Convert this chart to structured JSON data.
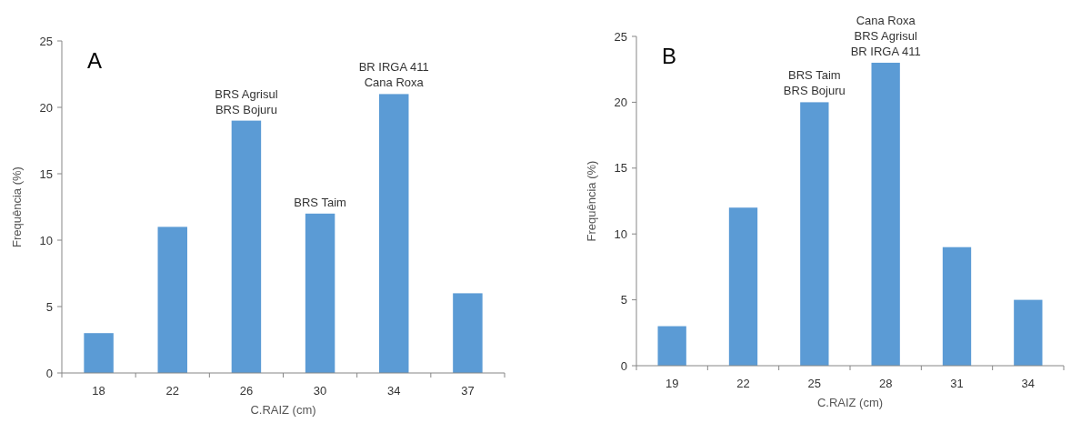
{
  "chart_data": [
    {
      "type": "bar",
      "title": "A",
      "xlabel": "C.RAIZ (cm)",
      "ylabel": "Frequência (%)",
      "categories": [
        "18",
        "22",
        "26",
        "30",
        "34",
        "37"
      ],
      "values": [
        3,
        11,
        19,
        12,
        21,
        6
      ],
      "color": "#5b9bd5",
      "ylim": [
        0,
        25
      ],
      "yticks": [
        0,
        5,
        10,
        15,
        20,
        25
      ],
      "grid": false,
      "annotations": [
        {
          "text": "BRS Agrisul\nBRS Bojuru",
          "x": "26",
          "y": 19
        },
        {
          "text": "BRS Taim",
          "x": "30",
          "y": 12
        },
        {
          "text": "BR IRGA 411\nCana Roxa",
          "x": "34",
          "y": 21
        }
      ]
    },
    {
      "type": "bar",
      "title": "B",
      "xlabel": "C.RAIZ (cm)",
      "ylabel": "Frequência (%)",
      "categories": [
        "19",
        "22",
        "25",
        "28",
        "31",
        "34"
      ],
      "values": [
        3,
        12,
        20,
        23,
        9,
        5
      ],
      "color": "#5b9bd5",
      "ylim": [
        0,
        25
      ],
      "yticks": [
        0,
        5,
        10,
        15,
        20,
        25
      ],
      "grid": false,
      "annotations": [
        {
          "text": "BRS Taim\nBRS Bojuru",
          "x": "25",
          "y": 20
        },
        {
          "text": "Cana Roxa\nBRS Agrisul\nBR IRGA 411",
          "x": "28",
          "y": 23
        }
      ]
    }
  ]
}
